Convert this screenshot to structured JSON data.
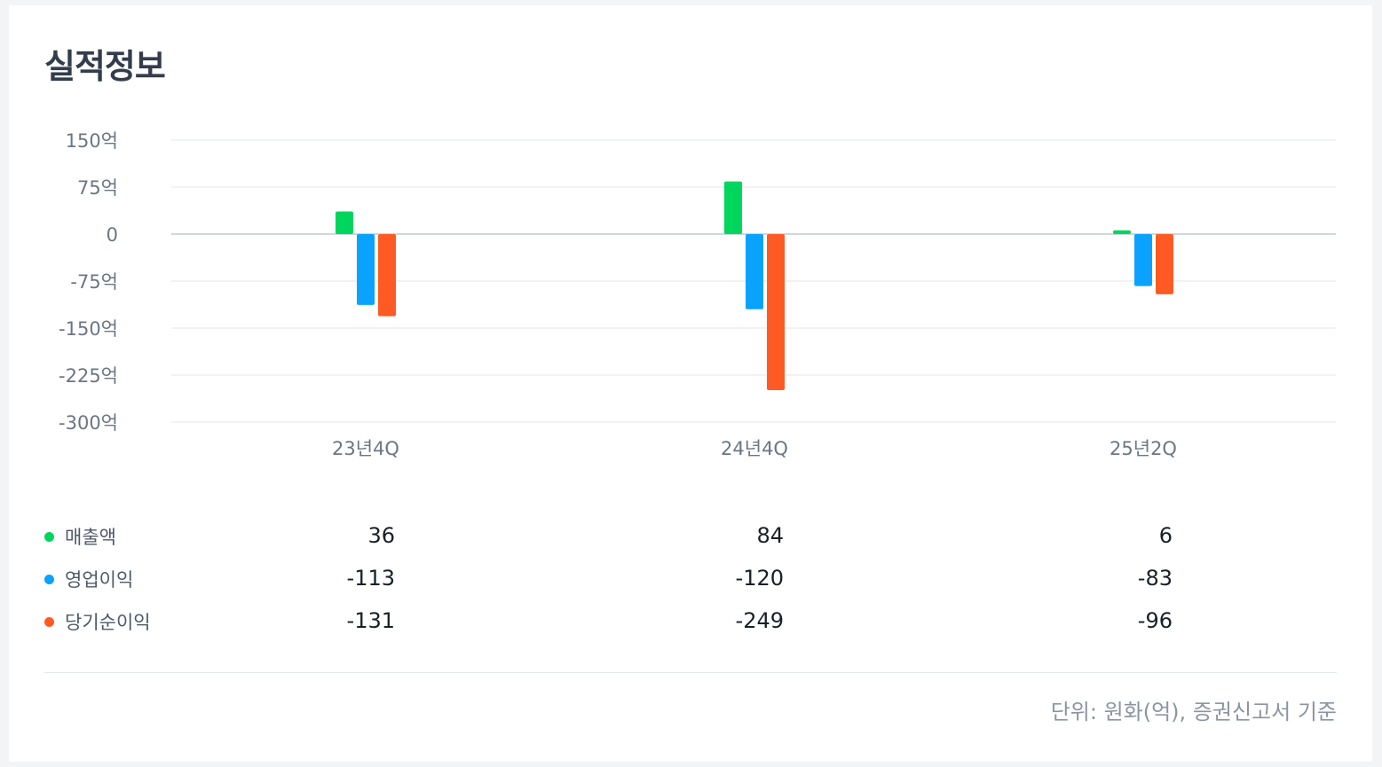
{
  "title": "실적정보",
  "footnote": "단위: 원화(억), 증권신고서 기준",
  "colors": {
    "revenue": "#00d65e",
    "operating": "#0aa2ff",
    "net": "#ff5a24"
  },
  "chart_data": {
    "type": "bar",
    "categories": [
      "23년4Q",
      "24년4Q",
      "25년2Q"
    ],
    "yticks": [
      "150억",
      "75억",
      "0",
      "-75억",
      "-150억",
      "-225억",
      "-300억"
    ],
    "ylim": [
      -300,
      150
    ],
    "grid": true,
    "series": [
      {
        "name": "매출액",
        "values": [
          36,
          84,
          6
        ],
        "labels": [
          "36",
          "84",
          "6"
        ]
      },
      {
        "name": "영업이익",
        "values": [
          -113,
          -120,
          -83
        ],
        "labels": [
          "-113",
          "-120",
          "-83"
        ]
      },
      {
        "name": "당기순이익",
        "values": [
          -131,
          -249,
          -96
        ],
        "labels": [
          "-131",
          "-249",
          "-96"
        ]
      }
    ]
  }
}
